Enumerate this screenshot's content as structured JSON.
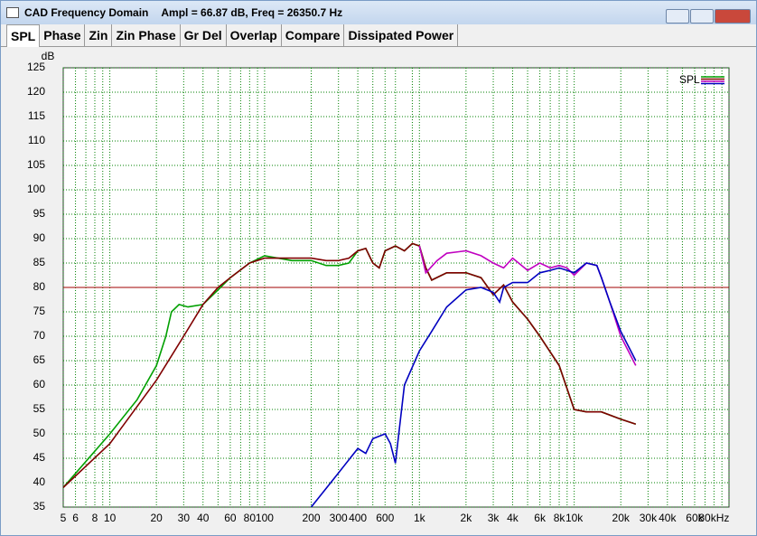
{
  "window": {
    "title": "CAD Frequency Domain",
    "status": "Ampl = 66.87 dB, Freq = 26350.7 Hz"
  },
  "tabs": [
    "SPL",
    "Phase",
    "Zin",
    "Zin Phase",
    "Gr Del",
    "Overlap",
    "Compare",
    "Dissipated Power"
  ],
  "chart_data": {
    "type": "line",
    "y_label": "dB",
    "legend": "upper right",
    "legend_label": "SPL",
    "log_x": true,
    "grid": true,
    "grid_color": "#008000",
    "xlim": [
      5,
      100000
    ],
    "ylim": [
      35,
      125
    ],
    "yticks": [
      35,
      40,
      45,
      50,
      55,
      60,
      65,
      70,
      75,
      80,
      85,
      90,
      95,
      100,
      105,
      110,
      115,
      120,
      125
    ],
    "xticks": [
      5,
      6,
      8,
      10,
      20,
      30,
      40,
      60,
      80,
      100,
      200,
      300,
      400,
      600,
      {
        "value": 1000,
        "label": "1k"
      },
      {
        "value": 2000,
        "label": "2k"
      },
      {
        "value": 3000,
        "label": "3k"
      },
      {
        "value": 4000,
        "label": "4k"
      },
      {
        "value": 6000,
        "label": "6k"
      },
      {
        "value": 8000,
        "label": "8k"
      },
      {
        "value": 10000,
        "label": "10k"
      },
      {
        "value": 20000,
        "label": "20k"
      },
      {
        "value": 30000,
        "label": "30k"
      },
      {
        "value": 40000,
        "label": "40k"
      },
      {
        "value": 60000,
        "label": "60k"
      },
      {
        "value": 80000,
        "label": "80kHz"
      }
    ],
    "x_minor_grid": [
      7,
      9,
      50,
      70,
      90,
      500,
      700,
      900,
      5000,
      7000,
      9000,
      50000,
      70000,
      90000,
      100000
    ],
    "reference_line": {
      "value": 80,
      "color": "#a00000"
    },
    "series": [
      {
        "color": "#00a000",
        "x": [
          5,
          10,
          15,
          20,
          23,
          25,
          28,
          32,
          40,
          50,
          60,
          80,
          100,
          150,
          200,
          250,
          300,
          350,
          400,
          450,
          500,
          550,
          600,
          700,
          800,
          900,
          1000,
          1100,
          1200,
          1500,
          2000,
          2500,
          3000,
          3500,
          4000,
          5000,
          6000,
          8000,
          10000,
          12000,
          15000,
          20000,
          25000
        ],
        "values": [
          39,
          50,
          57,
          64,
          70,
          75,
          76.5,
          76,
          76.5,
          79.5,
          82,
          85,
          86.5,
          85.5,
          85.5,
          84.5,
          84.5,
          85,
          87.5,
          88,
          85,
          84,
          87.5,
          88.5,
          87.5,
          89,
          88.5,
          84,
          81.5,
          83,
          83,
          82,
          78.5,
          80.5,
          77,
          73.5,
          70,
          64,
          55,
          54.5,
          54.5,
          53,
          52
        ]
      },
      {
        "color": "#800000",
        "x": [
          5,
          10,
          20,
          30,
          40,
          50,
          60,
          80,
          100,
          150,
          200,
          250,
          300,
          350,
          400,
          450,
          500,
          550,
          600,
          700,
          800,
          900,
          1000,
          1100,
          1200,
          1500,
          2000,
          2500,
          3000,
          3500,
          4000,
          5000,
          6000,
          8000,
          10000,
          12000,
          15000,
          20000,
          25000
        ],
        "values": [
          39,
          48,
          61,
          70,
          76.5,
          80,
          82,
          85,
          86,
          86,
          86,
          85.5,
          85.5,
          86,
          87.5,
          88,
          85,
          84,
          87.5,
          88.5,
          87.5,
          89,
          88.5,
          84,
          81.5,
          83,
          83,
          82,
          78.5,
          80.5,
          77,
          73.5,
          70,
          64,
          55,
          54.5,
          54.5,
          53,
          52
        ]
      },
      {
        "color": "#c000c0",
        "x": [
          1000,
          1100,
          1300,
          1500,
          2000,
          2500,
          3000,
          3500,
          4000,
          5000,
          6000,
          7000,
          8000,
          9000,
          10000,
          12000,
          14000,
          15000,
          17000,
          20000,
          25000
        ],
        "values": [
          88.5,
          83,
          85.5,
          87,
          87.5,
          86.5,
          85,
          84,
          86,
          83.5,
          85,
          84,
          84.5,
          84,
          82.5,
          85,
          84.5,
          82,
          77,
          70,
          64
        ]
      },
      {
        "color": "#0000c0",
        "x": [
          200,
          300,
          400,
          450,
          500,
          600,
          650,
          700,
          800,
          1000,
          1200,
          1500,
          2000,
          2500,
          3000,
          3300,
          3500,
          4000,
          5000,
          6000,
          7000,
          8000,
          9000,
          10000,
          12000,
          14000,
          15000,
          17000,
          20000,
          25000
        ],
        "values": [
          35,
          42,
          47,
          46,
          49,
          50,
          48,
          44,
          60,
          67,
          71,
          76,
          79.5,
          80,
          79,
          77,
          80,
          81,
          81,
          83,
          83.5,
          84,
          83.5,
          83,
          85,
          84.5,
          82,
          77,
          71,
          65
        ]
      }
    ]
  }
}
